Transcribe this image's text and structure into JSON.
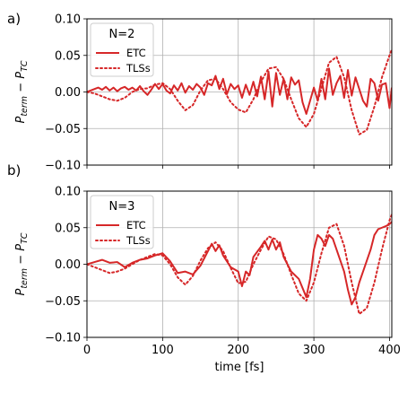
{
  "chart_data": [
    {
      "type": "line",
      "panel_label": "a)",
      "title": "",
      "legend_title": "N=2",
      "legend_position": "top-left",
      "grid": true,
      "xlabel": "",
      "ylabel_main": "P",
      "ylabel_sub1": "term",
      "ylabel_minus": " − ",
      "ylabel_main2": "P",
      "ylabel_sub2": "TC",
      "xlim": [
        0,
        403
      ],
      "ylim": [
        -0.1,
        0.1
      ],
      "x_ticks": [
        0,
        100,
        200,
        300,
        400
      ],
      "x_tick_labels": [
        "",
        "",
        "",
        "",
        ""
      ],
      "y_ticks": [
        -0.1,
        -0.05,
        0.0,
        0.05,
        0.1
      ],
      "y_tick_labels": [
        "−0.10",
        "−0.05",
        "0.00",
        "0.05",
        "0.10"
      ],
      "color": "#d62728",
      "series": [
        {
          "name": "ETC",
          "style": "solid",
          "x": [
            0,
            5,
            10,
            15,
            20,
            25,
            30,
            35,
            40,
            45,
            50,
            55,
            60,
            65,
            70,
            75,
            80,
            85,
            90,
            95,
            100,
            105,
            110,
            115,
            120,
            125,
            130,
            135,
            140,
            145,
            150,
            155,
            160,
            165,
            170,
            175,
            180,
            185,
            190,
            195,
            200,
            205,
            210,
            215,
            220,
            225,
            230,
            235,
            240,
            245,
            250,
            255,
            260,
            265,
            270,
            275,
            280,
            285,
            290,
            295,
            300,
            305,
            310,
            315,
            320,
            325,
            330,
            335,
            340,
            345,
            350,
            355,
            360,
            365,
            370,
            375,
            380,
            385,
            390,
            395,
            400,
            403
          ],
          "y": [
            0.0,
            0.002,
            0.004,
            0.006,
            0.003,
            0.007,
            0.002,
            0.006,
            0.001,
            0.005,
            0.007,
            0.003,
            0.006,
            0.002,
            0.008,
            0.001,
            -0.004,
            0.003,
            0.011,
            0.004,
            0.011,
            0.002,
            -0.002,
            0.009,
            0.002,
            0.012,
            -0.001,
            0.008,
            0.003,
            0.011,
            0.006,
            -0.004,
            0.012,
            0.009,
            0.022,
            0.004,
            0.018,
            -0.003,
            0.011,
            0.004,
            0.009,
            -0.008,
            0.01,
            -0.004,
            0.014,
            -0.006,
            0.021,
            -0.01,
            0.028,
            -0.02,
            0.026,
            -0.004,
            0.018,
            -0.01,
            0.02,
            0.01,
            0.016,
            -0.014,
            -0.03,
            -0.012,
            0.006,
            -0.012,
            0.018,
            -0.01,
            0.032,
            -0.004,
            0.012,
            0.022,
            -0.008,
            0.03,
            -0.005,
            0.02,
            0.004,
            -0.012,
            -0.02,
            0.018,
            0.012,
            -0.012,
            0.01,
            0.012,
            -0.022,
            0.006
          ]
        },
        {
          "name": "TLSs",
          "style": "dotted",
          "x": [
            0,
            10,
            20,
            30,
            40,
            50,
            60,
            70,
            80,
            90,
            100,
            110,
            120,
            130,
            140,
            150,
            160,
            170,
            180,
            190,
            200,
            210,
            220,
            230,
            240,
            250,
            260,
            270,
            280,
            290,
            300,
            310,
            320,
            330,
            340,
            350,
            360,
            370,
            380,
            390,
            400,
            403
          ],
          "y": [
            0.0,
            -0.002,
            -0.006,
            -0.01,
            -0.012,
            -0.008,
            0.0,
            0.004,
            0.005,
            0.01,
            0.012,
            0.004,
            -0.012,
            -0.025,
            -0.018,
            0.002,
            0.016,
            0.018,
            0.004,
            -0.014,
            -0.024,
            -0.028,
            -0.01,
            0.014,
            0.032,
            0.034,
            0.018,
            -0.01,
            -0.036,
            -0.048,
            -0.03,
            0.005,
            0.04,
            0.048,
            0.02,
            -0.025,
            -0.058,
            -0.052,
            -0.02,
            0.02,
            0.05,
            0.058
          ]
        }
      ]
    },
    {
      "type": "line",
      "panel_label": "b)",
      "title": "",
      "legend_title": "N=3",
      "legend_position": "top-left",
      "grid": true,
      "xlabel": "time [fs]",
      "ylabel_main": "P",
      "ylabel_sub1": "term",
      "ylabel_minus": " − ",
      "ylabel_main2": "P",
      "ylabel_sub2": "TC",
      "xlim": [
        0,
        403
      ],
      "ylim": [
        -0.1,
        0.1
      ],
      "x_ticks": [
        0,
        100,
        200,
        300,
        400
      ],
      "x_tick_labels": [
        "0",
        "100",
        "200",
        "300",
        "400"
      ],
      "y_ticks": [
        -0.1,
        -0.05,
        0.0,
        0.05,
        0.1
      ],
      "y_tick_labels": [
        "−0.10",
        "−0.05",
        "0.00",
        "0.05",
        "0.10"
      ],
      "color": "#d62728",
      "series": [
        {
          "name": "ETC",
          "style": "solid",
          "x": [
            0,
            10,
            20,
            30,
            40,
            50,
            60,
            70,
            80,
            90,
            100,
            110,
            120,
            130,
            140,
            150,
            160,
            165,
            170,
            175,
            180,
            190,
            200,
            205,
            210,
            215,
            220,
            230,
            235,
            240,
            245,
            250,
            255,
            260,
            265,
            270,
            280,
            290,
            295,
            300,
            305,
            310,
            315,
            320,
            325,
            330,
            335,
            340,
            345,
            350,
            355,
            360,
            365,
            370,
            375,
            380,
            385,
            390,
            395,
            400,
            403
          ],
          "y": [
            0.0,
            0.003,
            0.006,
            0.002,
            0.003,
            -0.004,
            0.002,
            0.006,
            0.008,
            0.012,
            0.015,
            0.004,
            -0.012,
            -0.01,
            -0.014,
            -0.002,
            0.018,
            0.028,
            0.018,
            0.026,
            0.012,
            -0.004,
            -0.01,
            -0.03,
            -0.01,
            -0.015,
            0.01,
            0.024,
            0.032,
            0.02,
            0.034,
            0.02,
            0.03,
            0.01,
            0.0,
            -0.01,
            -0.02,
            -0.045,
            -0.02,
            0.02,
            0.04,
            0.035,
            0.025,
            0.04,
            0.035,
            0.02,
            0.005,
            -0.01,
            -0.035,
            -0.055,
            -0.045,
            -0.025,
            -0.01,
            0.005,
            0.02,
            0.04,
            0.048,
            0.05,
            0.052,
            0.055,
            0.058
          ]
        },
        {
          "name": "TLSs",
          "style": "dotted",
          "x": [
            0,
            10,
            20,
            30,
            40,
            50,
            60,
            70,
            80,
            90,
            100,
            110,
            120,
            130,
            140,
            150,
            160,
            170,
            180,
            190,
            200,
            210,
            220,
            230,
            240,
            250,
            260,
            270,
            280,
            290,
            300,
            310,
            320,
            330,
            340,
            350,
            360,
            370,
            380,
            390,
            400,
            403
          ],
          "y": [
            0.0,
            -0.004,
            -0.008,
            -0.012,
            -0.01,
            -0.006,
            0.0,
            0.006,
            0.01,
            0.014,
            0.012,
            0.0,
            -0.018,
            -0.028,
            -0.016,
            0.005,
            0.022,
            0.03,
            0.018,
            -0.005,
            -0.026,
            -0.024,
            0.0,
            0.02,
            0.038,
            0.034,
            0.014,
            -0.014,
            -0.04,
            -0.05,
            -0.025,
            0.015,
            0.05,
            0.055,
            0.025,
            -0.025,
            -0.068,
            -0.06,
            -0.025,
            0.02,
            0.06,
            0.068
          ]
        }
      ]
    }
  ]
}
